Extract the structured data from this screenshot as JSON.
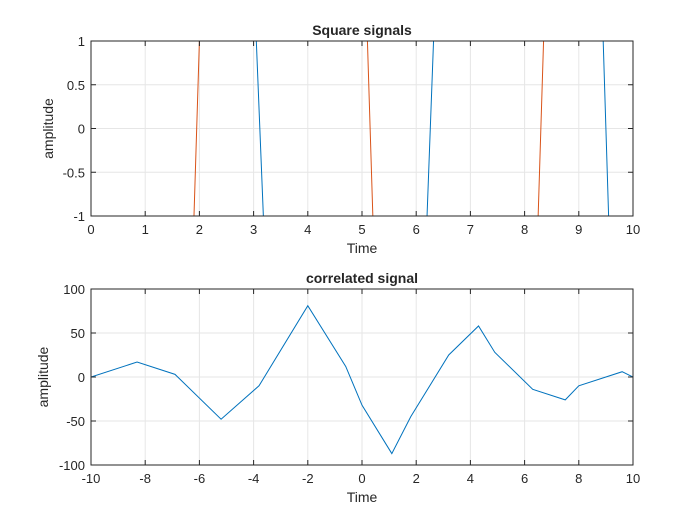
{
  "chart_data": [
    {
      "type": "line",
      "title": "Square signals",
      "xlabel": "Time",
      "ylabel": "amplitude",
      "xlim": [
        0,
        10
      ],
      "ylim": [
        -1,
        1
      ],
      "xticks": [
        "0",
        "1",
        "2",
        "3",
        "4",
        "5",
        "6",
        "7",
        "8",
        "9",
        "10"
      ],
      "yticks": [
        "-1",
        "-0.5",
        "0",
        "0.5",
        "1"
      ],
      "grid": true,
      "colors": [
        "#0072BD",
        "#D95319"
      ],
      "series": [
        {
          "x": [
            0,
            3.05,
            3.18,
            6.2,
            6.32,
            9.45,
            9.55,
            10
          ],
          "y": [
            1,
            1,
            -1,
            -1,
            1,
            1,
            -1,
            -1
          ]
        },
        {
          "x": [
            0,
            1.9,
            2.0,
            5.1,
            5.2,
            8.25,
            8.35,
            10
          ],
          "y": [
            -1,
            -1,
            1,
            1,
            -1,
            -1,
            1,
            1
          ]
        }
      ]
    },
    {
      "type": "line",
      "title": "correlated signal",
      "xlabel": "Time",
      "ylabel": "amplitude",
      "xlim": [
        -10,
        10
      ],
      "ylim": [
        -100,
        100
      ],
      "xticks": [
        "-10",
        "-8",
        "-6",
        "-4",
        "-2",
        "0",
        "2",
        "4",
        "6",
        "8",
        "10"
      ],
      "yticks": [
        "-100",
        "-50",
        "0",
        "50",
        "100"
      ],
      "grid": true,
      "colors": [
        "#0072BD"
      ],
      "series": [
        {
          "x": [
            -10,
            -8.3,
            -6.9,
            -5.2,
            -3.8,
            -2.0,
            -0.6,
            0,
            1.1,
            1.8,
            3.2,
            4.3,
            4.9,
            6.3,
            7.5,
            8.0,
            9.6,
            10
          ],
          "y": [
            0,
            17,
            3,
            -48,
            -10,
            81,
            12,
            -32,
            -87,
            -45,
            25,
            58,
            28,
            -14,
            -26,
            -10,
            6,
            0
          ]
        }
      ]
    }
  ]
}
